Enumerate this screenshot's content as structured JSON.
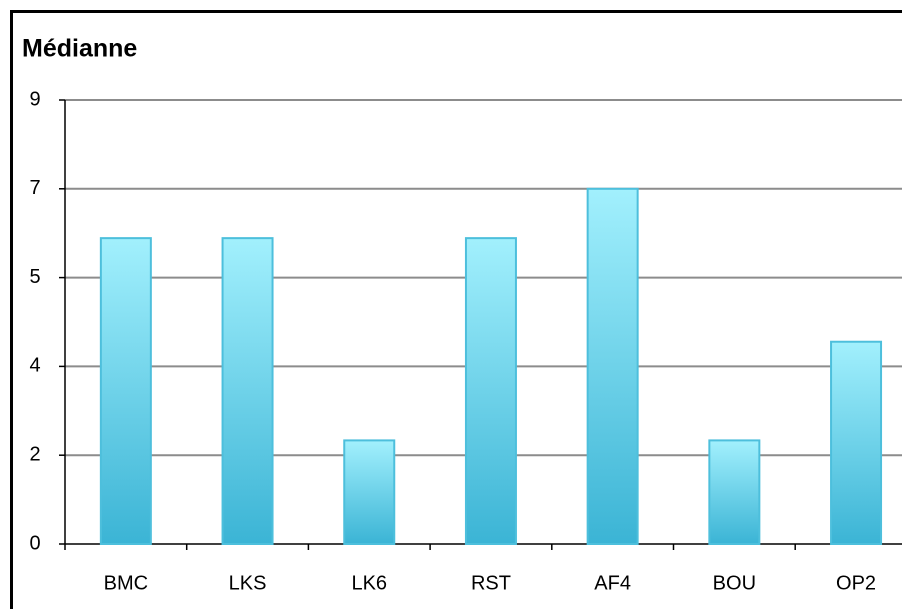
{
  "chart_data": {
    "type": "bar",
    "title": "Médianne",
    "categories": [
      "BMC",
      "LKS",
      "LK6",
      "RST",
      "AF4",
      "BOU",
      "OP2"
    ],
    "values": [
      6.2,
      6.2,
      2.1,
      6.2,
      7.2,
      2.1,
      4.1
    ],
    "color": "#4dbfdc",
    "ylim": [
      0,
      9
    ],
    "yticks": [
      0,
      {
        "value": 1.8,
        "label": "2"
      },
      {
        "value": 3.6,
        "label": "4"
      },
      {
        "value": 5.4,
        "label": "5"
      },
      {
        "value": 7.2,
        "label": "7"
      },
      9
    ],
    "grid": true
  }
}
